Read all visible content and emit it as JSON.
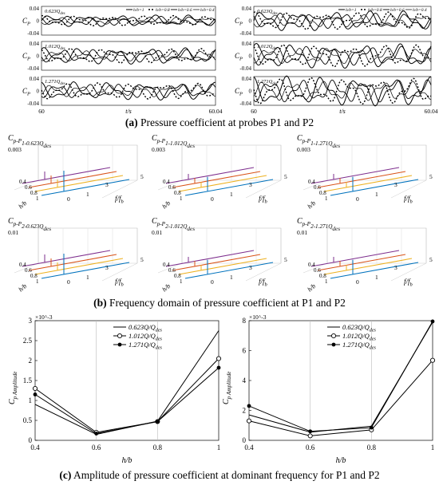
{
  "captions": {
    "a_tag": "(a)",
    "a_text": "Pressure coefficient at probes P1 and P2",
    "b_tag": "(b)",
    "b_text": "Frequency domain of pressure coefficient at P1 and P2",
    "c_tag": "(c)",
    "c_text": "Amplitude of pressure coefficient at dominant frequency for P1 and P2"
  },
  "chart_data": [
    {
      "type": "line",
      "panel": "a-left",
      "ylabel": "C_P",
      "xlabel": "t/s",
      "xlim": [
        60,
        60.04
      ],
      "xtick_labels": [
        "60",
        "60.04"
      ],
      "ytick_labels": [
        "0.04",
        "0",
        "-0.04"
      ],
      "legend": [
        "h/b=1",
        "h/b=0.8",
        "h/b=0.6",
        "h/b=0.4"
      ],
      "subplots": [
        "0.623Q_des",
        "1.012Q_des",
        "1.271Q_des"
      ]
    },
    {
      "type": "line",
      "panel": "a-right",
      "ylabel": "C_P",
      "xlabel": "t/s",
      "xlim": [
        60,
        60.04
      ],
      "xtick_labels": [
        "60",
        "60.04"
      ],
      "ytick_labels": [
        "0.04",
        "0",
        "-0.04"
      ],
      "legend": [
        "h/b=1",
        "h/b=0.8",
        "h/b=0.6",
        "h/b=0.4"
      ],
      "subplots": [
        "0.623Q_des",
        "1.012Q_des",
        "1.271Q_des"
      ]
    },
    {
      "type": "line",
      "panel": "b-spectra",
      "titles": [
        "C_p-P_1-0.623Q_des",
        "C_p-P_1-1.012Q_des",
        "C_p-P_1-1.271Q_des",
        "C_p-P_2-0.623Q_des",
        "C_p-P_2-1.012Q_des",
        "C_p-P_2-1.271Q_des"
      ],
      "ztick_top": [
        "0.003",
        "0.003",
        "0.003",
        "0.01",
        "0.01",
        "0.01"
      ],
      "xtick_labels": [
        "0.4",
        "0.6",
        "0.8",
        "1"
      ],
      "ytick_labels": [
        "0",
        "1",
        "3",
        "5"
      ],
      "xlabel": "h/b",
      "ylabel": "f/f_b",
      "series_colors": [
        "#7e2f8e",
        "#d95319",
        "#edb120",
        "#0072bd"
      ]
    },
    {
      "type": "line",
      "panel": "c-left",
      "xlabel": "h/b",
      "ylabel": "C_p Amplitude",
      "multiplier": "×10^-3",
      "categories": [
        0.4,
        0.6,
        0.8,
        1.0
      ],
      "xtick_labels": [
        "0.4",
        "0.6",
        "0.8",
        "1"
      ],
      "ylim": [
        0,
        3
      ],
      "ytick_labels": [
        "0",
        "0.5",
        "1",
        "1.5",
        "2",
        "2.5",
        "3"
      ],
      "legend_position": "top-left",
      "series": [
        {
          "name": "0.623Q/Q_des",
          "marker": "none",
          "values": [
            0.9,
            0.15,
            0.48,
            2.75
          ]
        },
        {
          "name": "1.012Q/Q_des",
          "marker": "open-circle",
          "values": [
            1.3,
            0.2,
            0.47,
            2.05
          ]
        },
        {
          "name": "1.271Q/Q_des",
          "marker": "filled-circle",
          "values": [
            1.15,
            0.17,
            0.47,
            1.82
          ]
        }
      ]
    },
    {
      "type": "line",
      "panel": "c-right",
      "xlabel": "h/b",
      "ylabel": "C_p Amplitude",
      "multiplier": "×10^-3",
      "categories": [
        0.4,
        0.6,
        0.8,
        1.0
      ],
      "xtick_labels": [
        "0.4",
        "0.6",
        "0.8",
        "1"
      ],
      "ylim": [
        0,
        8
      ],
      "ytick_labels": [
        "0",
        "2",
        "4",
        "6",
        "8"
      ],
      "legend_position": "top-left",
      "series": [
        {
          "name": "0.623Q/Q_des",
          "marker": "none",
          "values": [
            1.7,
            0.55,
            0.95,
            7.9
          ]
        },
        {
          "name": "1.012Q/Q_des",
          "marker": "open-circle",
          "values": [
            1.3,
            0.3,
            0.7,
            5.35
          ]
        },
        {
          "name": "1.271Q/Q_des",
          "marker": "filled-circle",
          "values": [
            2.3,
            0.6,
            0.85,
            7.95
          ]
        }
      ]
    }
  ]
}
